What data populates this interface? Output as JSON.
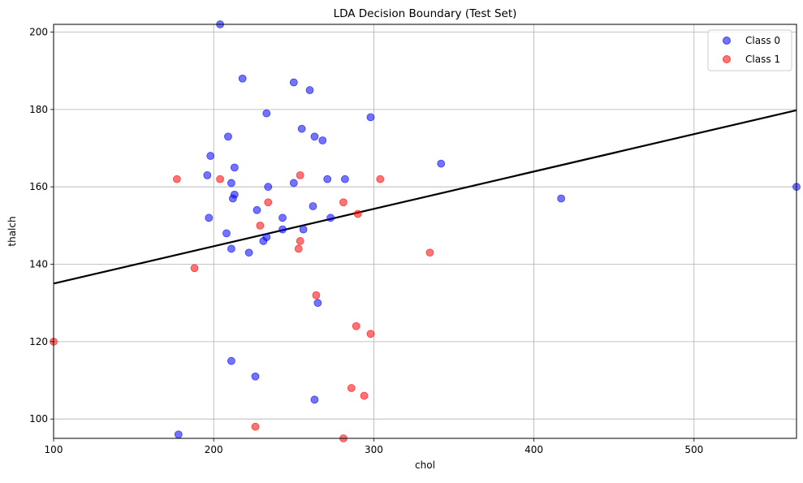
{
  "colors": {
    "class_0": "#0000ff",
    "class_1": "#ff0000",
    "boundary": "#000000",
    "grid": "#b0b0b0"
  },
  "chart_data": {
    "type": "scatter",
    "title": "LDA Decision Boundary (Test Set)",
    "xlabel": "chol",
    "ylabel": "thalch",
    "xlim": [
      100,
      564
    ],
    "ylim": [
      95,
      202
    ],
    "xticks": [
      100,
      200,
      300,
      400,
      500
    ],
    "yticks": [
      100,
      120,
      140,
      160,
      180,
      200
    ],
    "grid": true,
    "legend_position": "top-right",
    "series": [
      {
        "name": "Class 0",
        "color": "#0000ff",
        "points": [
          [
            204,
            202
          ],
          [
            218,
            188
          ],
          [
            250,
            187
          ],
          [
            260,
            185
          ],
          [
            233,
            179
          ],
          [
            298,
            178
          ],
          [
            209,
            173
          ],
          [
            255,
            175
          ],
          [
            263,
            173
          ],
          [
            268,
            172
          ],
          [
            198,
            168
          ],
          [
            213,
            165
          ],
          [
            342,
            166
          ],
          [
            196,
            163
          ],
          [
            211,
            161
          ],
          [
            234,
            160
          ],
          [
            250,
            161
          ],
          [
            271,
            162
          ],
          [
            282,
            162
          ],
          [
            213,
            158
          ],
          [
            212,
            157
          ],
          [
            417,
            157
          ],
          [
            564,
            160
          ],
          [
            197,
            152
          ],
          [
            227,
            154
          ],
          [
            243,
            152
          ],
          [
            262,
            155
          ],
          [
            273,
            152
          ],
          [
            208,
            148
          ],
          [
            243,
            149
          ],
          [
            256,
            149
          ],
          [
            233,
            147
          ],
          [
            231,
            146
          ],
          [
            211,
            144
          ],
          [
            222,
            143
          ],
          [
            265,
            130
          ],
          [
            211,
            115
          ],
          [
            226,
            111
          ],
          [
            263,
            105
          ],
          [
            178,
            96
          ]
        ]
      },
      {
        "name": "Class 1",
        "color": "#ff0000",
        "points": [
          [
            177,
            162
          ],
          [
            204,
            162
          ],
          [
            254,
            163
          ],
          [
            304,
            162
          ],
          [
            234,
            156
          ],
          [
            281,
            156
          ],
          [
            229,
            150
          ],
          [
            290,
            153
          ],
          [
            254,
            146
          ],
          [
            253,
            144
          ],
          [
            188,
            139
          ],
          [
            335,
            143
          ],
          [
            264,
            132
          ],
          [
            100,
            120
          ],
          [
            289,
            124
          ],
          [
            298,
            122
          ],
          [
            286,
            108
          ],
          [
            294,
            106
          ],
          [
            226,
            98
          ],
          [
            281,
            95
          ]
        ]
      }
    ],
    "decision_boundary": {
      "name": "",
      "color": "#000000",
      "points": [
        [
          100,
          135
        ],
        [
          564,
          179.8
        ]
      ]
    }
  }
}
